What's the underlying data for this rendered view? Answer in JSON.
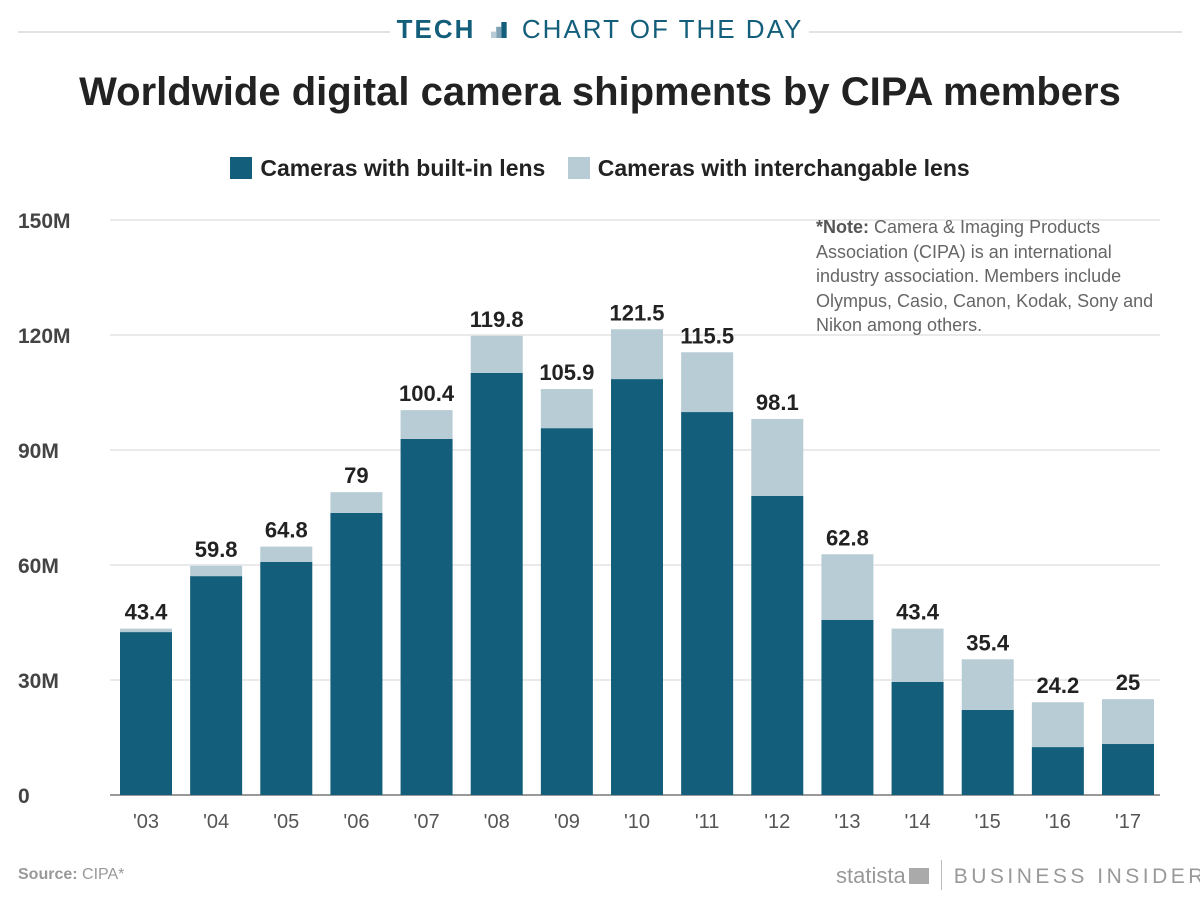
{
  "header": {
    "section": "TECH",
    "label": "CHART OF THE DAY"
  },
  "colors": {
    "built_in": "#135e7a",
    "interchangeable": "#b8ccd6",
    "header": "#135e7a"
  },
  "chart_data": {
    "type": "bar",
    "stacked": true,
    "title": "Worldwide digital camera shipments by CIPA members",
    "categories": [
      "'03",
      "'04",
      "'05",
      "'06",
      "'07",
      "'08",
      "'09",
      "'10",
      "'11",
      "'12",
      "'13",
      "'14",
      "'15",
      "'16",
      "'17"
    ],
    "series": [
      {
        "name": "Cameras with built-in lens",
        "values": [
          42.5,
          57.1,
          60.8,
          73.6,
          92.9,
          110.1,
          95.7,
          108.5,
          99.9,
          78.0,
          45.7,
          29.5,
          22.2,
          12.5,
          13.3
        ]
      },
      {
        "name": "Cameras with interchangable lens",
        "values": [
          0.9,
          2.7,
          4.0,
          5.4,
          7.5,
          9.7,
          10.2,
          13.0,
          15.6,
          20.1,
          17.1,
          13.9,
          13.2,
          11.7,
          11.7
        ]
      }
    ],
    "totals": [
      "43.4",
      "59.8",
      "64.8",
      "79",
      "100.4",
      "119.8",
      "105.9",
      "121.5",
      "115.5",
      "98.1",
      "62.8",
      "43.4",
      "35.4",
      "24.2",
      "25"
    ],
    "ylim": [
      0,
      150
    ],
    "yticks": [
      0,
      30,
      60,
      90,
      120,
      150
    ],
    "ytick_labels": [
      "0",
      "30M",
      "60M",
      "90M",
      "120M",
      "150M"
    ],
    "grid": true,
    "legend": "top"
  },
  "note": {
    "bold": "*Note:",
    "text": " Camera & Imaging Products Association (CIPA) is an international industry association. Members include Olympus, Casio, Canon, Kodak, Sony and Nikon among others."
  },
  "source": {
    "label": "Source:",
    "value": " CIPA*"
  },
  "brand": {
    "statista": "statista",
    "bi": "BUSINESS INSIDER"
  }
}
